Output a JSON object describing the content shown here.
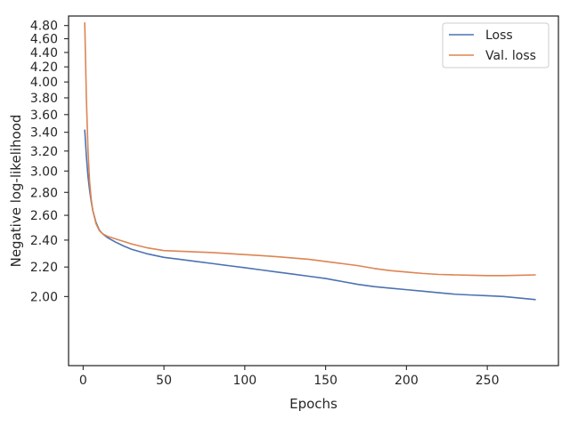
{
  "chart_data": {
    "type": "line",
    "title": "",
    "xlabel": "Epochs",
    "ylabel": "Negative log-likelihood",
    "xlim": [
      -9,
      294
    ],
    "ylim": [
      1.6,
      4.95
    ],
    "y_scale": "log",
    "grid": false,
    "legend_position": "top-right",
    "x_ticks": [
      0,
      50,
      100,
      150,
      200,
      250
    ],
    "x_tick_labels": [
      "0",
      "50",
      "100",
      "150",
      "200",
      "250"
    ],
    "y_ticks": [
      2.0,
      2.2,
      2.4,
      2.6,
      2.8,
      3.0,
      3.2,
      3.4,
      3.6,
      3.8,
      4.0,
      4.2,
      4.4,
      4.6,
      4.8
    ],
    "y_tick_labels": [
      "2.00",
      "2.20",
      "2.40",
      "2.60",
      "2.80",
      "3.00",
      "3.20",
      "3.40",
      "3.60",
      "3.80",
      "4.00",
      "4.20",
      "4.40",
      "4.60",
      "4.80"
    ],
    "series": [
      {
        "name": "Loss",
        "color": "#4c72b0",
        "x": [
          1,
          2,
          3,
          4,
          5,
          6,
          8,
          10,
          12,
          15,
          20,
          25,
          30,
          40,
          50,
          60,
          70,
          80,
          90,
          100,
          110,
          120,
          130,
          140,
          150,
          160,
          170,
          180,
          190,
          200,
          210,
          220,
          230,
          240,
          250,
          260,
          270,
          280
        ],
        "y": [
          3.43,
          3.15,
          2.95,
          2.82,
          2.72,
          2.64,
          2.54,
          2.48,
          2.45,
          2.42,
          2.385,
          2.355,
          2.33,
          2.295,
          2.27,
          2.255,
          2.24,
          2.225,
          2.21,
          2.195,
          2.18,
          2.165,
          2.15,
          2.135,
          2.12,
          2.1,
          2.08,
          2.065,
          2.055,
          2.045,
          2.035,
          2.025,
          2.015,
          2.01,
          2.005,
          2.0,
          1.99,
          1.98
        ]
      },
      {
        "name": "Val. loss",
        "color": "#dd8452",
        "x": [
          1,
          2,
          3,
          4,
          5,
          6,
          8,
          10,
          12,
          15,
          20,
          25,
          30,
          40,
          50,
          60,
          70,
          80,
          90,
          100,
          110,
          120,
          130,
          140,
          150,
          160,
          170,
          180,
          190,
          200,
          210,
          220,
          230,
          240,
          250,
          260,
          270,
          280
        ],
        "y": [
          4.85,
          3.8,
          3.22,
          2.9,
          2.74,
          2.64,
          2.53,
          2.475,
          2.45,
          2.43,
          2.41,
          2.39,
          2.37,
          2.34,
          2.32,
          2.315,
          2.31,
          2.305,
          2.298,
          2.29,
          2.283,
          2.275,
          2.265,
          2.255,
          2.24,
          2.225,
          2.21,
          2.19,
          2.175,
          2.165,
          2.155,
          2.148,
          2.145,
          2.142,
          2.14,
          2.14,
          2.142,
          2.145
        ]
      }
    ]
  }
}
